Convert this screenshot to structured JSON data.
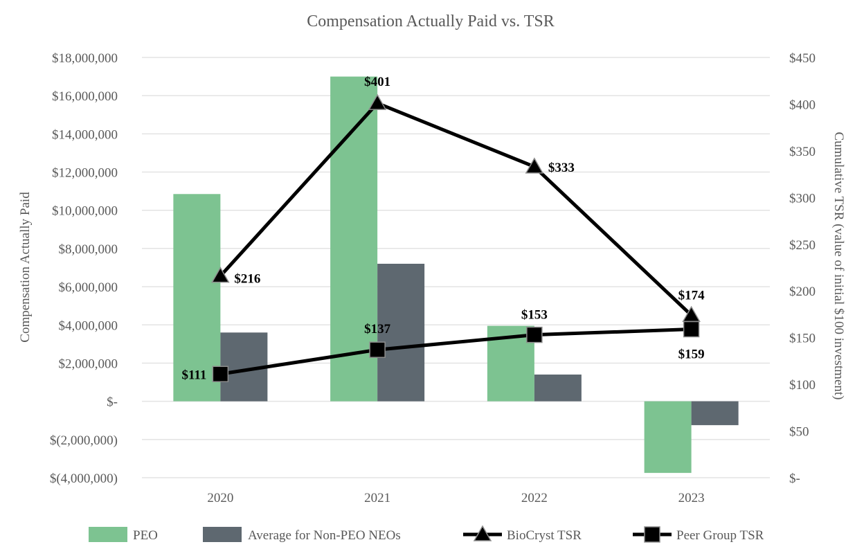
{
  "chart_data": {
    "type": "bar",
    "title": "Compensation Actually Paid vs. TSR",
    "categories": [
      "2020",
      "2021",
      "2022",
      "2023"
    ],
    "ylabel": "Compensation Actually Paid",
    "y2label": "Cumulative TSR (value of initial $100 investment)",
    "ylim": [
      -4000000,
      18000000
    ],
    "y2lim": [
      0,
      450
    ],
    "yticks": [
      {
        "value": 18000000,
        "label": "$18,000,000"
      },
      {
        "value": 16000000,
        "label": "$16,000,000"
      },
      {
        "value": 14000000,
        "label": "$14,000,000"
      },
      {
        "value": 12000000,
        "label": "$12,000,000"
      },
      {
        "value": 10000000,
        "label": "$10,000,000"
      },
      {
        "value": 8000000,
        "label": "$8,000,000"
      },
      {
        "value": 6000000,
        "label": "$6,000,000"
      },
      {
        "value": 4000000,
        "label": "$4,000,000"
      },
      {
        "value": 2000000,
        "label": "$2,000,000"
      },
      {
        "value": 0,
        "label": "$-"
      },
      {
        "value": -2000000,
        "label": "$(2,000,000)"
      },
      {
        "value": -4000000,
        "label": "$(4,000,000)"
      }
    ],
    "y2ticks": [
      {
        "value": 450,
        "label": "$450"
      },
      {
        "value": 400,
        "label": "$400"
      },
      {
        "value": 350,
        "label": "$350"
      },
      {
        "value": 300,
        "label": "$300"
      },
      {
        "value": 250,
        "label": "$250"
      },
      {
        "value": 200,
        "label": "$200"
      },
      {
        "value": 150,
        "label": "$150"
      },
      {
        "value": 100,
        "label": "$100"
      },
      {
        "value": 50,
        "label": "$50"
      },
      {
        "value": 0,
        "label": "$-"
      }
    ],
    "bar_series": [
      {
        "name": "PEO",
        "color": "#7dc391",
        "values": [
          10850000,
          17000000,
          3950000,
          -3750000
        ]
      },
      {
        "name": "Average for Non-PEO NEOs",
        "color": "#5e6870",
        "values": [
          3600000,
          7200000,
          1400000,
          -1250000
        ]
      }
    ],
    "line_series": [
      {
        "name": "BioCryst TSR",
        "marker": "triangle",
        "color": "#000000",
        "values": [
          216,
          401,
          333,
          174
        ],
        "labels": [
          "$216",
          "$401",
          "$333",
          "$174"
        ]
      },
      {
        "name": "Peer Group TSR",
        "marker": "square",
        "color": "#000000",
        "values": [
          111,
          137,
          153,
          159
        ],
        "labels": [
          "$111",
          "$137",
          "$153",
          "$159"
        ]
      }
    ],
    "legend_position": "bottom"
  }
}
